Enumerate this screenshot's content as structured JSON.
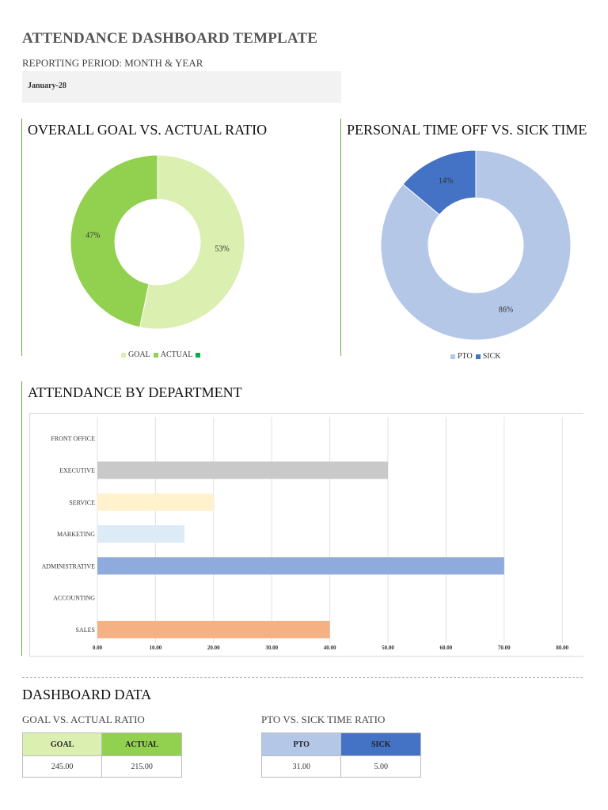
{
  "header": {
    "title": "ATTENDANCE DASHBOARD TEMPLATE",
    "period_label": "REPORTING PERIOD: MONTH & YEAR",
    "period_value": "January-28"
  },
  "panels": {
    "goal_title": "OVERALL GOAL VS. ACTUAL RATIO",
    "pto_title": "PERSONAL TIME OFF VS. SICK TIME",
    "dept_title": "ATTENDANCE BY DEPARTMENT"
  },
  "colors": {
    "goal": "#dbefb0",
    "actual": "#92d050",
    "extra_legend": "#00b050",
    "pto": "#b4c7e7",
    "sick": "#4472c4"
  },
  "chart_data": [
    {
      "type": "pie",
      "variant": "donut",
      "title": "OVERALL GOAL VS. ACTUAL RATIO",
      "slices": [
        {
          "name": "GOAL",
          "value": 245.0,
          "label": "53%"
        },
        {
          "name": "ACTUAL",
          "value": 215.0,
          "label": "47%"
        }
      ],
      "legend": [
        "GOAL",
        "ACTUAL",
        ""
      ],
      "legend_position": "bottom"
    },
    {
      "type": "pie",
      "variant": "donut",
      "title": "PERSONAL TIME OFF VS. SICK TIME",
      "slices": [
        {
          "name": "PTO",
          "value": 31.0,
          "label": "86%"
        },
        {
          "name": "SICK",
          "value": 5.0,
          "label": "14%"
        }
      ],
      "legend": [
        "PTO",
        "SICK"
      ],
      "legend_position": "bottom"
    },
    {
      "type": "bar",
      "orientation": "horizontal",
      "title": "ATTENDANCE BY DEPARTMENT",
      "categories": [
        "FRONT OFFICE",
        "EXECUTIVE",
        "SERVICE",
        "MARKETING",
        "ADMINISTRATIVE",
        "ACCOUNTING",
        "SALES"
      ],
      "values": [
        0,
        50,
        20,
        15,
        70,
        0,
        40
      ],
      "bar_colors": [
        "#cccccc",
        "#c9c9c9",
        "#fff2cc",
        "#ddebf7",
        "#8faadc",
        "#cccccc",
        "#f4b183"
      ],
      "xlim": [
        0,
        80
      ],
      "xticks": [
        "0.00",
        "10.00",
        "20.00",
        "30.00",
        "40.00",
        "50.00",
        "60.00",
        "70.00",
        "80.00"
      ],
      "grid": true
    }
  ],
  "dashboard_data": {
    "title": "DASHBOARD DATA",
    "goal_table": {
      "label": "GOAL VS. ACTUAL RATIO",
      "headers": [
        "GOAL",
        "ACTUAL"
      ],
      "values": [
        "245.00",
        "215.00"
      ]
    },
    "pto_table": {
      "label": "PTO VS. SICK TIME RATIO",
      "headers": [
        "PTO",
        "SICK"
      ],
      "values": [
        "31.00",
        "5.00"
      ]
    }
  }
}
